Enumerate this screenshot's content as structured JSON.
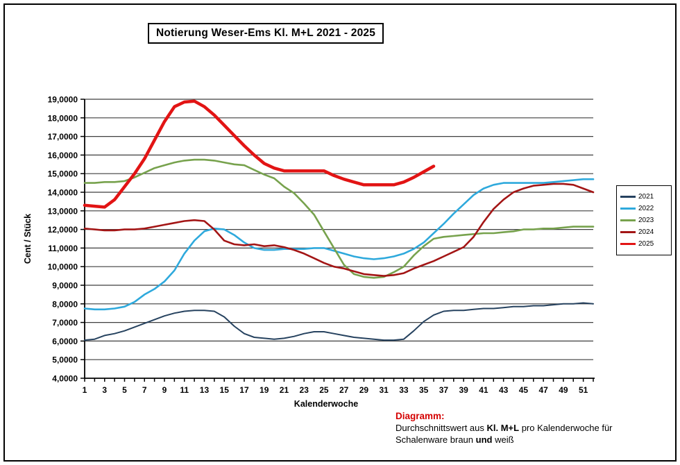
{
  "chart_data": {
    "type": "line",
    "title": "Notierung Weser-Ems Kl. M+L 2021 - 2025",
    "xlabel": "Kalenderwoche",
    "ylabel": "Cent / Stück",
    "ylim": [
      4,
      19
    ],
    "x_weeks": 52,
    "grid": true,
    "grid_color": "#3f3f3f",
    "legend_position": "right",
    "y_tick_labels": [
      "19,0000",
      "18,0000",
      "17,0000",
      "16,0000",
      "15,0000",
      "14,0000",
      "13,0000",
      "12,0000",
      "11,0000",
      "10,0000",
      "9,0000",
      "8,0000",
      "7,0000",
      "6,0000",
      "5,0000",
      "4,0000"
    ],
    "x_tick_labels": [
      "1",
      "3",
      "5",
      "7",
      "9",
      "11",
      "13",
      "15",
      "17",
      "19",
      "21",
      "23",
      "25",
      "27",
      "29",
      "31",
      "33",
      "35",
      "37",
      "39",
      "41",
      "43",
      "45",
      "47",
      "49",
      "51"
    ],
    "series": [
      {
        "name": "2021",
        "color": "#26425f",
        "width": 2,
        "values": [
          6.05,
          6.1,
          6.3,
          6.4,
          6.55,
          6.75,
          6.95,
          7.15,
          7.35,
          7.5,
          7.6,
          7.65,
          7.65,
          7.6,
          7.3,
          6.8,
          6.4,
          6.2,
          6.15,
          6.1,
          6.15,
          6.25,
          6.4,
          6.5,
          6.5,
          6.4,
          6.3,
          6.2,
          6.15,
          6.1,
          6.05,
          6.05,
          6.1,
          6.55,
          7.05,
          7.4,
          7.6,
          7.65,
          7.65,
          7.7,
          7.75,
          7.75,
          7.8,
          7.85,
          7.85,
          7.9,
          7.9,
          7.95,
          8.0,
          8.0,
          8.05,
          8.0
        ]
      },
      {
        "name": "2022",
        "color": "#2ea9dc",
        "width": 2.6,
        "values": [
          7.75,
          7.7,
          7.7,
          7.75,
          7.85,
          8.1,
          8.5,
          8.8,
          9.2,
          9.8,
          10.7,
          11.4,
          11.9,
          12.05,
          12.0,
          11.7,
          11.3,
          11.0,
          10.9,
          10.9,
          10.95,
          10.95,
          10.95,
          11.0,
          11.0,
          10.85,
          10.7,
          10.55,
          10.45,
          10.4,
          10.45,
          10.55,
          10.7,
          10.95,
          11.3,
          11.8,
          12.3,
          12.85,
          13.35,
          13.85,
          14.2,
          14.4,
          14.5,
          14.5,
          14.5,
          14.5,
          14.5,
          14.55,
          14.6,
          14.65,
          14.7,
          14.7
        ]
      },
      {
        "name": "2023",
        "color": "#77a24d",
        "width": 2.6,
        "values": [
          14.5,
          14.5,
          14.55,
          14.55,
          14.6,
          14.8,
          15.05,
          15.3,
          15.45,
          15.6,
          15.7,
          15.75,
          15.75,
          15.7,
          15.6,
          15.5,
          15.45,
          15.2,
          14.95,
          14.75,
          14.3,
          13.95,
          13.4,
          12.8,
          11.9,
          11.0,
          10.1,
          9.6,
          9.45,
          9.4,
          9.45,
          9.7,
          10.0,
          10.6,
          11.1,
          11.5,
          11.6,
          11.65,
          11.7,
          11.75,
          11.8,
          11.8,
          11.85,
          11.9,
          12.0,
          12.0,
          12.05,
          12.05,
          12.1,
          12.15,
          12.15,
          12.15
        ]
      },
      {
        "name": "2024",
        "color": "#a31515",
        "width": 2.6,
        "values": [
          12.05,
          12.0,
          11.95,
          11.95,
          12.0,
          12.0,
          12.05,
          12.15,
          12.25,
          12.35,
          12.45,
          12.5,
          12.45,
          12.0,
          11.4,
          11.2,
          11.15,
          11.2,
          11.1,
          11.15,
          11.05,
          10.9,
          10.7,
          10.45,
          10.2,
          10.0,
          9.9,
          9.75,
          9.6,
          9.55,
          9.5,
          9.55,
          9.65,
          9.9,
          10.1,
          10.3,
          10.55,
          10.8,
          11.05,
          11.6,
          12.4,
          13.1,
          13.6,
          14.0,
          14.2,
          14.35,
          14.4,
          14.45,
          14.45,
          14.4,
          14.2,
          14.0
        ]
      },
      {
        "name": "2025",
        "color": "#e21414",
        "width": 4.5,
        "values": [
          13.3,
          13.25,
          13.2,
          13.6,
          14.3,
          15.0,
          15.8,
          16.8,
          17.8,
          18.6,
          18.85,
          18.9,
          18.6,
          18.15,
          17.6,
          17.05,
          16.5,
          16.0,
          15.55,
          15.3,
          15.15,
          15.15,
          15.15,
          15.15,
          15.15,
          14.9,
          14.7,
          14.55,
          14.4,
          14.4,
          14.4,
          14.4,
          14.55,
          14.8,
          15.1,
          15.4
        ]
      }
    ]
  },
  "footnote": {
    "heading": "Diagramm:",
    "heading_color": "#d40000",
    "lines": [
      [
        {
          "t": "Durchschnittswert aus ",
          "b": false
        },
        {
          "t": "Kl. M+L",
          "b": true
        },
        {
          "t": " pro Kalenderwoche für",
          "b": false
        }
      ],
      [
        {
          "t": "Schalenware braun ",
          "b": false
        },
        {
          "t": "und",
          "b": true
        },
        {
          "t": " weiß",
          "b": false
        }
      ]
    ]
  }
}
